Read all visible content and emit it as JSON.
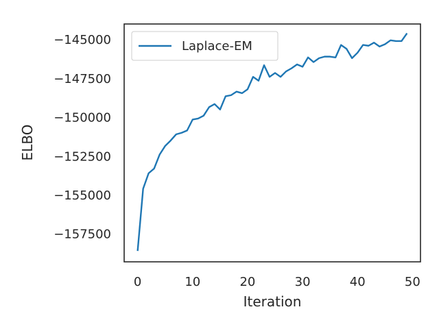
{
  "chart_data": {
    "type": "line",
    "title": "",
    "xlabel": "Iteration",
    "ylabel": "ELBO",
    "xlim": [
      -2.45,
      51.45
    ],
    "ylim": [
      -159300,
      -144000
    ],
    "grid": false,
    "legend_position": "top-left",
    "x_ticks": [
      0,
      10,
      20,
      30,
      40,
      50
    ],
    "x_tick_labels": [
      "0",
      "10",
      "20",
      "30",
      "40",
      "50"
    ],
    "y_ticks": [
      -145000,
      -147500,
      -150000,
      -152500,
      -155000,
      -157500
    ],
    "y_tick_labels": [
      "−145000",
      "−147500",
      "−150000",
      "−152500",
      "−155000",
      "−157500"
    ],
    "series": [
      {
        "name": "Laplace-EM",
        "color": "#1f77b4",
        "x": [
          0,
          1,
          2,
          3,
          4,
          5,
          6,
          7,
          8,
          9,
          10,
          11,
          12,
          13,
          14,
          15,
          16,
          17,
          18,
          19,
          20,
          21,
          22,
          23,
          24,
          25,
          26,
          27,
          28,
          29,
          30,
          31,
          32,
          33,
          34,
          35,
          36,
          37,
          38,
          39,
          40,
          41,
          42,
          43,
          44,
          45,
          46,
          47,
          48,
          49
        ],
        "y": [
          -158600,
          -154600,
          -153600,
          -153300,
          -152400,
          -151850,
          -151500,
          -151100,
          -151000,
          -150850,
          -150150,
          -150080,
          -149900,
          -149350,
          -149150,
          -149500,
          -148650,
          -148580,
          -148350,
          -148450,
          -148200,
          -147400,
          -147650,
          -146650,
          -147400,
          -147150,
          -147400,
          -147050,
          -146850,
          -146600,
          -146750,
          -146150,
          -146450,
          -146200,
          -146100,
          -146100,
          -146150,
          -145350,
          -145600,
          -146200,
          -145850,
          -145350,
          -145400,
          -145200,
          -145450,
          -145300,
          -145050,
          -145100,
          -145100,
          -144600
        ]
      }
    ]
  }
}
